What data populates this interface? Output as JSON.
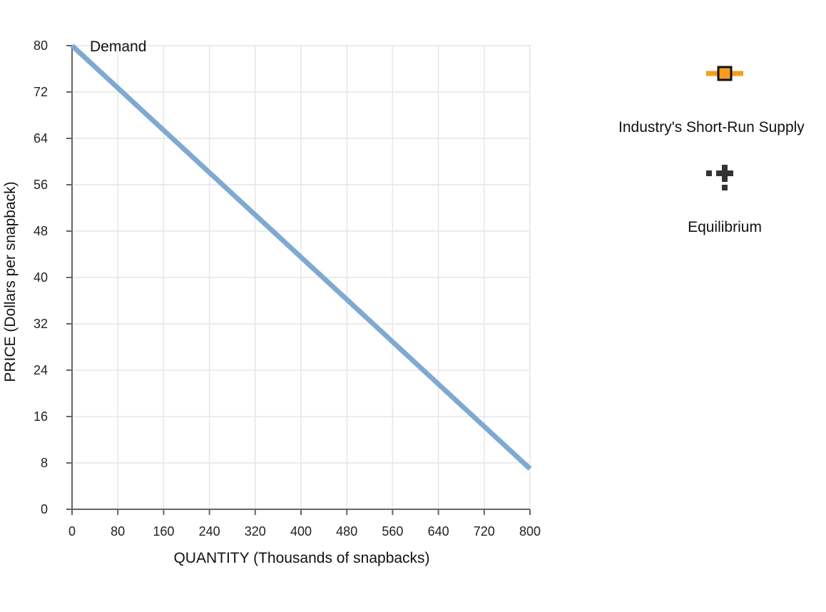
{
  "chart_data": {
    "type": "line",
    "xlabel": "QUANTITY (Thousands of snapbacks)",
    "ylabel": "PRICE (Dollars per snapback)",
    "xlim": [
      0,
      800
    ],
    "ylim": [
      0,
      80
    ],
    "x_ticks": [
      0,
      80,
      160,
      240,
      320,
      400,
      480,
      560,
      640,
      720,
      800
    ],
    "y_ticks": [
      0,
      8,
      16,
      24,
      32,
      40,
      48,
      56,
      64,
      72,
      80
    ],
    "grid": true,
    "series": [
      {
        "name": "Demand",
        "color": "#7fa9d1",
        "points": [
          [
            0,
            80
          ],
          [
            800,
            7
          ]
        ]
      }
    ]
  },
  "palette": {
    "items": [
      {
        "label": "Industry's Short-Run Supply",
        "icon": "orange-square-line-icon",
        "color": "#f59d1c"
      },
      {
        "label": "Equilibrium",
        "icon": "black-cross-icon",
        "color": "#333333"
      }
    ]
  }
}
